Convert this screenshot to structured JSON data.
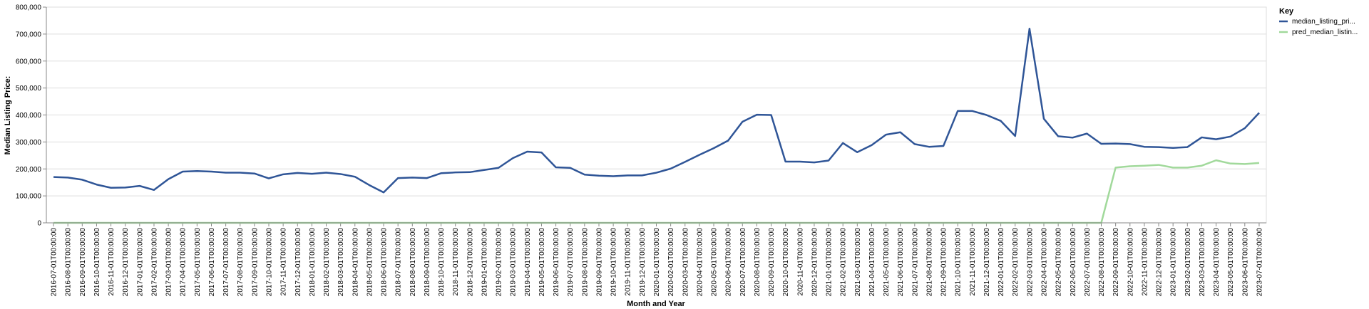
{
  "chart_data": {
    "type": "line",
    "xlabel": "Month and Year",
    "ylabel": "Median Listing Price:",
    "ylim": [
      0,
      800000
    ],
    "y_ticks": [
      "0",
      "100,000",
      "200,000",
      "300,000",
      "400,000",
      "500,000",
      "600,000",
      "700,000",
      "800,000"
    ],
    "grid": true,
    "legend": {
      "title": "Key",
      "position": "top-right",
      "entries": [
        "median_listing_pri...",
        "pred_median_listin..."
      ]
    },
    "x": [
      "2016-07-01T00:00:00",
      "2016-08-01T00:00:00",
      "2016-09-01T00:00:00",
      "2016-10-01T00:00:00",
      "2016-11-01T00:00:00",
      "2016-12-01T00:00:00",
      "2017-01-01T00:00:00",
      "2017-02-01T00:00:00",
      "2017-03-01T00:00:00",
      "2017-04-01T00:00:00",
      "2017-05-01T00:00:00",
      "2017-06-01T00:00:00",
      "2017-07-01T00:00:00",
      "2017-08-01T00:00:00",
      "2017-09-01T00:00:00",
      "2017-10-01T00:00:00",
      "2017-11-01T00:00:00",
      "2017-12-01T00:00:00",
      "2018-01-01T00:00:00",
      "2018-02-01T00:00:00",
      "2018-03-01T00:00:00",
      "2018-04-01T00:00:00",
      "2018-05-01T00:00:00",
      "2018-06-01T00:00:00",
      "2018-07-01T00:00:00",
      "2018-08-01T00:00:00",
      "2018-09-01T00:00:00",
      "2018-10-01T00:00:00",
      "2018-11-01T00:00:00",
      "2018-12-01T00:00:00",
      "2019-01-01T00:00:00",
      "2019-02-01T00:00:00",
      "2019-03-01T00:00:00",
      "2019-04-01T00:00:00",
      "2019-05-01T00:00:00",
      "2019-06-01T00:00:00",
      "2019-07-01T00:00:00",
      "2019-08-01T00:00:00",
      "2019-09-01T00:00:00",
      "2019-10-01T00:00:00",
      "2019-11-01T00:00:00",
      "2019-12-01T00:00:00",
      "2020-01-01T00:00:00",
      "2020-02-01T00:00:00",
      "2020-03-01T00:00:00",
      "2020-04-01T00:00:00",
      "2020-05-01T00:00:00",
      "2020-06-01T00:00:00",
      "2020-07-01T00:00:00",
      "2020-08-01T00:00:00",
      "2020-09-01T00:00:00",
      "2020-10-01T00:00:00",
      "2020-11-01T00:00:00",
      "2020-12-01T00:00:00",
      "2021-01-01T00:00:00",
      "2021-02-01T00:00:00",
      "2021-03-01T00:00:00",
      "2021-04-01T00:00:00",
      "2021-05-01T00:00:00",
      "2021-06-01T00:00:00",
      "2021-07-01T00:00:00",
      "2021-08-01T00:00:00",
      "2021-09-01T00:00:00",
      "2021-10-01T00:00:00",
      "2021-11-01T00:00:00",
      "2021-12-01T00:00:00",
      "2022-01-01T00:00:00",
      "2022-02-01T00:00:00",
      "2022-03-01T00:00:00",
      "2022-04-01T00:00:00",
      "2022-05-01T00:00:00",
      "2022-06-01T00:00:00",
      "2022-07-01T00:00:00",
      "2022-08-01T00:00:00",
      "2022-09-01T00:00:00",
      "2022-10-01T00:00:00",
      "2022-11-01T00:00:00",
      "2022-12-01T00:00:00",
      "2023-01-01T00:00:00",
      "2023-02-01T00:00:00",
      "2023-03-01T00:00:00",
      "2023-04-01T00:00:00",
      "2023-05-01T00:00:00",
      "2023-06-01T00:00:00",
      "2023-07-01T00:00:00"
    ],
    "series": [
      {
        "name": "median_listing_pri...",
        "color": "#2f5597",
        "values": [
          170000,
          168000,
          160000,
          142000,
          130000,
          131000,
          137000,
          122000,
          162000,
          190000,
          192000,
          190000,
          186000,
          186000,
          183000,
          165000,
          180000,
          185000,
          182000,
          186000,
          181000,
          171000,
          140000,
          113000,
          166000,
          168000,
          166000,
          184000,
          187000,
          188000,
          196000,
          204000,
          240000,
          264000,
          261000,
          206000,
          204000,
          179000,
          175000,
          173000,
          176000,
          176000,
          186000,
          201000,
          226000,
          252000,
          277000,
          305000,
          375000,
          401000,
          400000,
          227000,
          227000,
          224000,
          231000,
          296000,
          262000,
          288000,
          327000,
          336000,
          292000,
          282000,
          285000,
          415000,
          415000,
          400000,
          378000,
          322000,
          720000,
          386000,
          321000,
          316000,
          331000,
          293000,
          294000,
          292000,
          282000,
          281000,
          278000,
          281000,
          317000,
          310000,
          320000,
          351000,
          408000
        ]
      },
      {
        "name": "pred_median_listin...",
        "color": "#a1d99b",
        "values": [
          0,
          0,
          0,
          0,
          0,
          0,
          0,
          0,
          0,
          0,
          0,
          0,
          0,
          0,
          0,
          0,
          0,
          0,
          0,
          0,
          0,
          0,
          0,
          0,
          0,
          0,
          0,
          0,
          0,
          0,
          0,
          0,
          0,
          0,
          0,
          0,
          0,
          0,
          0,
          0,
          0,
          0,
          0,
          0,
          0,
          0,
          0,
          0,
          0,
          0,
          0,
          0,
          0,
          0,
          0,
          0,
          0,
          0,
          0,
          0,
          0,
          0,
          0,
          0,
          0,
          0,
          0,
          0,
          0,
          0,
          0,
          0,
          0,
          0,
          205000,
          210000,
          212000,
          215000,
          205000,
          205000,
          212000,
          232000,
          220000,
          218000,
          222000
        ]
      }
    ]
  }
}
